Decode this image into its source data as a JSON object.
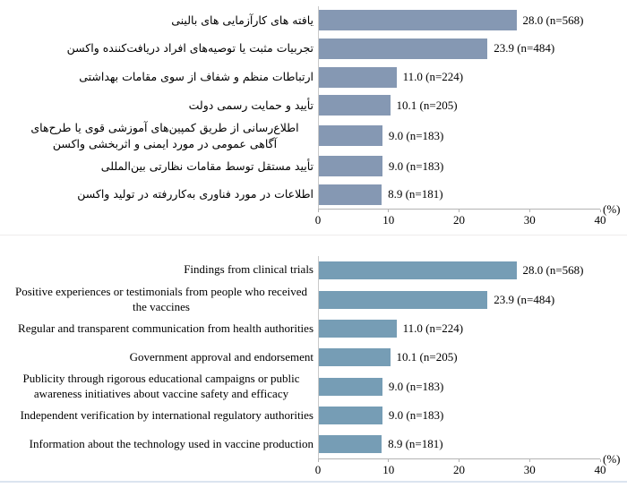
{
  "figure": {
    "divider_color": "#eeecec",
    "bottom_edge_color": "#dbe4ef"
  },
  "chart_data": [
    {
      "type": "bar",
      "orientation": "horizontal",
      "language": "Persian",
      "bar_color": "#8598b3",
      "axis_color": "#b3b3b3",
      "grid": false,
      "legend": false,
      "xlabel": "(%)",
      "xlim": [
        0,
        40
      ],
      "xticks": [
        0,
        10,
        20,
        30,
        40
      ],
      "categories": [
        "یافته های کارآزمایی های بالینی",
        "تجربیات مثبت یا توصیه‌های افراد دریافت‌کننده واکسن",
        "ارتباطات منظم و شفاف از سوی مقامات بهداشتی",
        "تأیید و حمایت رسمی دولت",
        "اطلاع‌رسانی از طریق کمپین‌های آموزشی قوی یا طرح‌های آگاهی عمومی در مورد ایمنی و اثربخشی واکسن",
        "تأیید مستقل توسط مقامات نظارتی بین‌المللی",
        "اطلاعات در مورد فناوری به‌کاررفته در تولید واکسن"
      ],
      "values": [
        28.0,
        23.9,
        11.0,
        10.1,
        9.0,
        9.0,
        8.9
      ],
      "counts": [
        568,
        484,
        224,
        205,
        183,
        183,
        181
      ],
      "value_labels": [
        "28.0 (n=568)",
        "23.9 (n=484)",
        "11.0 (n=224)",
        "10.1 (n=205)",
        "9.0 (n=183)",
        "9.0 (n=183)",
        "8.9 (n=181)"
      ]
    },
    {
      "type": "bar",
      "orientation": "horizontal",
      "language": "English",
      "bar_color": "#769db5",
      "axis_color": "#b3b3b3",
      "grid": false,
      "legend": false,
      "xlabel": "(%)",
      "xlim": [
        0,
        40
      ],
      "xticks": [
        0,
        10,
        20,
        30,
        40
      ],
      "categories": [
        "Findings from clinical trials",
        "Positive experiences or testimonials from people who received the vaccines",
        "Regular and transparent communication from health authorities",
        "Government approval and endorsement",
        "Publicity through rigorous educational campaigns or public awareness initiatives about vaccine safety and efficacy",
        "Independent verification by international regulatory authorities",
        "Information about the technology used in vaccine production"
      ],
      "values": [
        28.0,
        23.9,
        11.0,
        10.1,
        9.0,
        9.0,
        8.9
      ],
      "counts": [
        568,
        484,
        224,
        205,
        183,
        183,
        181
      ],
      "value_labels": [
        "28.0 (n=568)",
        "23.9 (n=484)",
        "11.0 (n=224)",
        "10.1 (n=205)",
        "9.0 (n=183)",
        "9.0 (n=183)",
        "8.9 (n=181)"
      ]
    }
  ]
}
